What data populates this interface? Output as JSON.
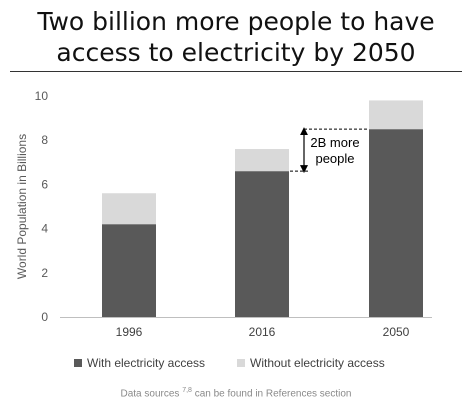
{
  "title_line1": "Two billion more people to have",
  "title_line2": "access to electricity by 2050",
  "footnote": {
    "prefix": "Data sources",
    "refs": "7,8",
    "suffix": "can be found in References section"
  },
  "chart_data": {
    "type": "bar",
    "stacked": true,
    "categories": [
      "1996",
      "2016",
      "2050"
    ],
    "series": [
      {
        "name": "With electricity access",
        "color": "#595959",
        "values": [
          4.2,
          6.6,
          8.5
        ]
      },
      {
        "name": "Without electricity access",
        "color": "#d9d9d9",
        "values": [
          1.4,
          1.0,
          1.3
        ]
      }
    ],
    "ylabel": "World Population in Billions",
    "ylim": [
      0,
      10
    ],
    "yticks": [
      0,
      2,
      4,
      6,
      8,
      10
    ],
    "grid": false,
    "legend": "bottom",
    "annotation": {
      "text_line1": "2B more",
      "text_line2": "people",
      "from": 6.6,
      "to": 8.5
    }
  }
}
